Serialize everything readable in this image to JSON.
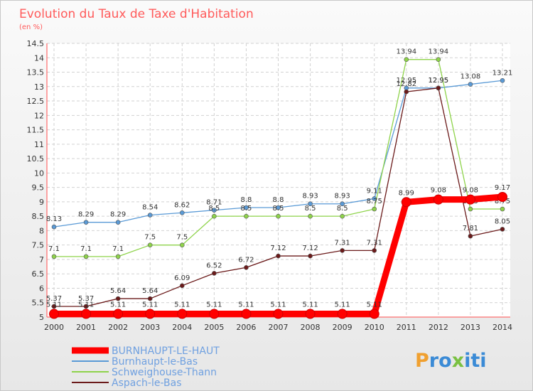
{
  "chart_data": {
    "type": "line",
    "title": "Evolution du Taux de Taxe d'Habitation",
    "subtitle": "(en %)",
    "x": [
      "2000",
      "2001",
      "2002",
      "2003",
      "2004",
      "2005",
      "2006",
      "2007",
      "2008",
      "2009",
      "2010",
      "2011",
      "2012",
      "2013",
      "2014"
    ],
    "ylim": [
      5,
      14.5
    ],
    "yticks": [
      "5",
      "5.5",
      "6",
      "6.5",
      "7",
      "7.5",
      "8",
      "8.5",
      "9",
      "9.5",
      "10",
      "10.5",
      "11",
      "11.5",
      "12",
      "12.5",
      "13",
      "13.5",
      "14",
      "14.5"
    ],
    "grid": true,
    "legend_position": "bottom-left",
    "series": [
      {
        "name": "Burnhaupt-le-Bas",
        "color": "#5a9ad6",
        "values": [
          8.13,
          8.29,
          8.29,
          8.54,
          8.62,
          8.71,
          8.8,
          8.8,
          8.93,
          8.93,
          9.11,
          12.95,
          12.95,
          13.08,
          13.21
        ],
        "labels": [
          "8.13",
          "8.29",
          "8.29",
          "8.54",
          "8.62",
          "8.71",
          "8.8",
          "8.8",
          "8.93",
          "8.93",
          "9.11",
          "12.95",
          "12.95",
          "13.08",
          "13.21"
        ]
      },
      {
        "name": "Schweighouse-Thann",
        "color": "#8ed34a",
        "values": [
          7.1,
          7.1,
          7.1,
          7.5,
          7.5,
          8.5,
          8.5,
          8.5,
          8.5,
          8.5,
          8.75,
          13.94,
          13.94,
          8.75,
          8.75
        ],
        "labels": [
          "7.1",
          "7.1",
          "7.1",
          "7.5",
          "7.5",
          "8.5",
          "8.5",
          "8.5",
          "8.5",
          "8.5",
          "8.75",
          "13.94",
          "13.94",
          "8.75",
          "8.75"
        ]
      },
      {
        "name": "Aspach-le-Bas",
        "color": "#6b1a1a",
        "values": [
          5.37,
          5.37,
          5.64,
          5.64,
          6.09,
          6.52,
          6.72,
          7.12,
          7.12,
          7.31,
          7.31,
          12.82,
          12.95,
          7.81,
          8.05
        ],
        "labels": [
          "5.37",
          "5.37",
          "5.64",
          "5.64",
          "6.09",
          "6.52",
          "6.72",
          "7.12",
          "7.12",
          "7.31",
          "7.31",
          "12.82",
          "12.95",
          "7.81",
          "8.05"
        ]
      },
      {
        "name": "BURNHAUPT-LE-HAUT",
        "color": "#ff0000",
        "values": [
          5.11,
          5.11,
          5.11,
          5.11,
          5.11,
          5.11,
          5.11,
          5.11,
          5.11,
          5.11,
          5.11,
          8.99,
          9.08,
          9.08,
          9.17
        ],
        "labels": [
          "5.11",
          "5.11",
          "5.11",
          "5.11",
          "5.11",
          "5.11",
          "5.11",
          "5.11",
          "5.11",
          "5.11",
          "5.11",
          "8.99",
          "9.08",
          "9.08",
          "9.17"
        ]
      }
    ],
    "legend_order": [
      "BURNHAUPT-LE-HAUT",
      "Burnhaupt-le-Bas",
      "Schweighouse-Thann",
      "Aspach-le-Bas"
    ]
  },
  "logo": {
    "text": "Proxiti"
  }
}
